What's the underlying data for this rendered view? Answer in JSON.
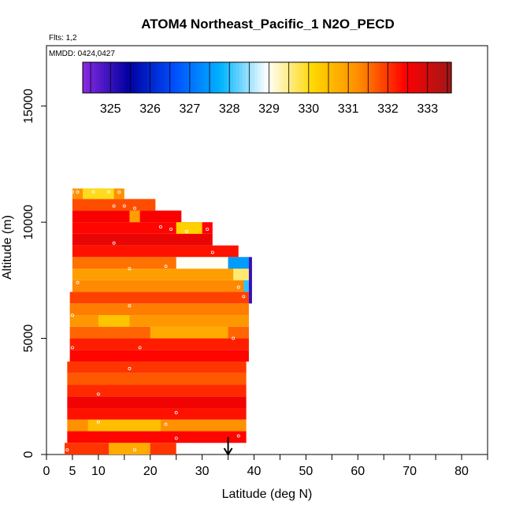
{
  "chart_data": {
    "type": "heatmap",
    "title": "ATOM4 Northeast_Pacific_1 N2O_PECD",
    "flights_note": "Flts: 1,2",
    "date_note": "MMDD: 0424,0427",
    "xlabel": "Latitude (deg N)",
    "ylabel": "Altitude (m)",
    "xlim": [
      0,
      85
    ],
    "ylim": [
      0,
      17600
    ],
    "x_ticks": [
      0,
      5,
      10,
      20,
      30,
      40,
      50,
      60,
      70,
      80
    ],
    "x_minor_ticks": [
      15,
      25,
      35,
      45,
      55,
      65,
      75,
      85
    ],
    "y_ticks": [
      0,
      5000,
      10000,
      15000
    ],
    "grid": false,
    "colorbar": {
      "ticks": [
        325,
        326,
        327,
        328,
        329,
        330,
        331,
        332,
        333
      ],
      "range": [
        324.3,
        333.6
      ],
      "colors": [
        "#8a2be2",
        "#0000a0",
        "#0050ff",
        "#00b4ff",
        "#ffffff",
        "#ffd700",
        "#ff8c00",
        "#ff0000",
        "#a01818"
      ]
    },
    "bands": [
      {
        "alt_lo": 11000,
        "alt_hi": 11450,
        "lat_lo": 5,
        "lat_hi": 15,
        "value": 331.2
      },
      {
        "alt_lo": 10500,
        "alt_hi": 11000,
        "lat_lo": 5,
        "lat_hi": 21,
        "value": 331.8
      },
      {
        "alt_lo": 10000,
        "alt_hi": 10500,
        "lat_lo": 5,
        "lat_hi": 26,
        "value": 332.5
      },
      {
        "alt_lo": 9500,
        "alt_hi": 10000,
        "lat_lo": 5,
        "lat_hi": 32,
        "value": 332.4
      },
      {
        "alt_lo": 9000,
        "alt_hi": 9500,
        "lat_lo": 5,
        "lat_hi": 32,
        "value": 332.7
      },
      {
        "alt_lo": 8500,
        "alt_hi": 9000,
        "lat_lo": 5,
        "lat_hi": 37,
        "value": 332.3
      },
      {
        "alt_lo": 8000,
        "alt_hi": 8500,
        "lat_lo": 5,
        "lat_hi": 39,
        "value": 331.5
      },
      {
        "alt_lo": 7500,
        "alt_hi": 8000,
        "lat_lo": 5,
        "lat_hi": 39,
        "value": 331.0
      },
      {
        "alt_lo": 7000,
        "alt_hi": 7500,
        "lat_lo": 5,
        "lat_hi": 39,
        "value": 331.3
      },
      {
        "alt_lo": 6500,
        "alt_hi": 7000,
        "lat_lo": 4.5,
        "lat_hi": 39,
        "value": 331.9
      },
      {
        "alt_lo": 6000,
        "alt_hi": 6500,
        "lat_lo": 4.5,
        "lat_hi": 39,
        "value": 331.4
      },
      {
        "alt_lo": 5500,
        "alt_hi": 6000,
        "lat_lo": 4.5,
        "lat_hi": 39,
        "value": 331.1
      },
      {
        "alt_lo": 5000,
        "alt_hi": 5500,
        "lat_lo": 4.5,
        "lat_hi": 39,
        "value": 331.6
      },
      {
        "alt_lo": 4500,
        "alt_hi": 5000,
        "lat_lo": 4.5,
        "lat_hi": 39,
        "value": 332.2
      },
      {
        "alt_lo": 4000,
        "alt_hi": 4500,
        "lat_lo": 4.5,
        "lat_hi": 39,
        "value": 332.4
      },
      {
        "alt_lo": 3500,
        "alt_hi": 4000,
        "lat_lo": 4,
        "lat_hi": 38.5,
        "value": 332.0
      },
      {
        "alt_lo": 3000,
        "alt_hi": 3500,
        "lat_lo": 4,
        "lat_hi": 38.5,
        "value": 331.7
      },
      {
        "alt_lo": 2500,
        "alt_hi": 3000,
        "lat_lo": 4,
        "lat_hi": 38.5,
        "value": 332.1
      },
      {
        "alt_lo": 2000,
        "alt_hi": 2500,
        "lat_lo": 4,
        "lat_hi": 38.5,
        "value": 332.6
      },
      {
        "alt_lo": 1500,
        "alt_hi": 2000,
        "lat_lo": 4,
        "lat_hi": 38.5,
        "value": 332.3
      },
      {
        "alt_lo": 1000,
        "alt_hi": 1500,
        "lat_lo": 4,
        "lat_hi": 38.5,
        "value": 331.2
      },
      {
        "alt_lo": 500,
        "alt_hi": 1000,
        "lat_lo": 4,
        "lat_hi": 38.5,
        "value": 332.4
      },
      {
        "alt_lo": 0,
        "alt_hi": 500,
        "lat_lo": 3.5,
        "lat_hi": 25,
        "value": 332.0
      }
    ],
    "highlights": [
      {
        "alt_lo": 11000,
        "alt_hi": 11450,
        "lat_lo": 7,
        "lat_hi": 13,
        "value": 330.0
      },
      {
        "alt_lo": 10000,
        "alt_hi": 10500,
        "lat_lo": 16,
        "lat_hi": 18,
        "value": 331.0
      },
      {
        "alt_lo": 9500,
        "alt_hi": 10000,
        "lat_lo": 25,
        "lat_hi": 30,
        "value": 330.2
      },
      {
        "alt_lo": 8000,
        "alt_hi": 8500,
        "lat_lo": 25,
        "lat_hi": 35,
        "value": 329.0
      },
      {
        "alt_lo": 8000,
        "alt_hi": 8500,
        "lat_lo": 35,
        "lat_hi": 39,
        "value": 327.5
      },
      {
        "alt_lo": 7500,
        "alt_hi": 8000,
        "lat_lo": 36,
        "lat_hi": 39,
        "value": 329.6
      },
      {
        "alt_lo": 7000,
        "alt_hi": 7500,
        "lat_lo": 38,
        "lat_hi": 39,
        "value": 328.0
      },
      {
        "alt_lo": 5500,
        "alt_hi": 6000,
        "lat_lo": 10,
        "lat_hi": 16,
        "value": 330.4
      },
      {
        "alt_lo": 5000,
        "alt_hi": 5500,
        "lat_lo": 20,
        "lat_hi": 35,
        "value": 330.8
      },
      {
        "alt_lo": 1000,
        "alt_hi": 1500,
        "lat_lo": 8,
        "lat_hi": 22,
        "value": 330.5
      },
      {
        "alt_lo": 0,
        "alt_hi": 500,
        "lat_lo": 12,
        "lat_hi": 20,
        "value": 330.8
      }
    ],
    "edge_strip": {
      "lat": 39,
      "alt_lo": 6500,
      "alt_hi": 8500,
      "value": 325.0
    },
    "points": [
      {
        "lat": 5,
        "alt": 11300
      },
      {
        "lat": 6,
        "alt": 11300
      },
      {
        "lat": 9,
        "alt": 11300
      },
      {
        "lat": 12,
        "alt": 11300
      },
      {
        "lat": 14,
        "alt": 11300
      },
      {
        "lat": 13,
        "alt": 10700
      },
      {
        "lat": 15,
        "alt": 10700
      },
      {
        "lat": 17,
        "alt": 10600
      },
      {
        "lat": 22,
        "alt": 9800
      },
      {
        "lat": 24,
        "alt": 9700
      },
      {
        "lat": 27,
        "alt": 9600
      },
      {
        "lat": 31,
        "alt": 9700
      },
      {
        "lat": 13,
        "alt": 9100
      },
      {
        "lat": 32,
        "alt": 8700
      },
      {
        "lat": 23,
        "alt": 8100
      },
      {
        "lat": 16,
        "alt": 8000
      },
      {
        "lat": 6,
        "alt": 7400
      },
      {
        "lat": 37,
        "alt": 7200
      },
      {
        "lat": 38,
        "alt": 6800
      },
      {
        "lat": 16,
        "alt": 6400
      },
      {
        "lat": 5,
        "alt": 6000
      },
      {
        "lat": 36,
        "alt": 5000
      },
      {
        "lat": 18,
        "alt": 4600
      },
      {
        "lat": 5,
        "alt": 4600
      },
      {
        "lat": 16,
        "alt": 3700
      },
      {
        "lat": 10,
        "alt": 2600
      },
      {
        "lat": 25,
        "alt": 1800
      },
      {
        "lat": 10,
        "alt": 1400
      },
      {
        "lat": 23,
        "alt": 1300
      },
      {
        "lat": 37,
        "alt": 800
      },
      {
        "lat": 25,
        "alt": 700
      },
      {
        "lat": 4,
        "alt": 200
      },
      {
        "lat": 17,
        "alt": 200
      }
    ],
    "arrow": {
      "lat": 35,
      "alt_from": 750,
      "alt_to": 0
    }
  }
}
